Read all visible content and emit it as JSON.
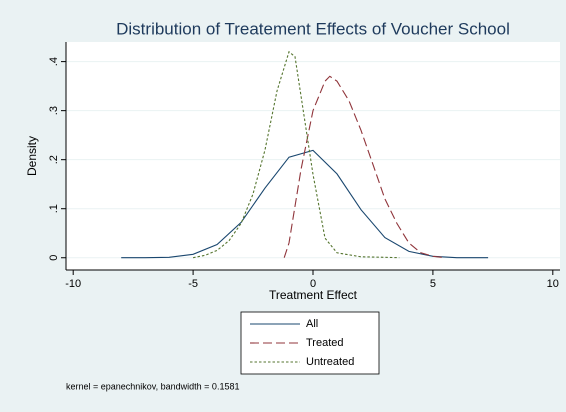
{
  "chart_data": {
    "type": "line",
    "title": "Distribution of Treatement Effects of Voucher School",
    "x_label": "Treatment Effect",
    "y_label": "Density",
    "note": "kernel = epanechnikov, bandwidth = 0.1581",
    "xlim": [
      -10.3,
      10.3
    ],
    "ylim": [
      -0.025,
      0.44
    ],
    "xticks": [
      -10,
      -5,
      0,
      5,
      10
    ],
    "yticks": [
      0,
      {
        "value": 0.1,
        "label": ".1"
      },
      {
        "value": 0.2,
        "label": ".2"
      },
      {
        "value": 0.3,
        "label": ".3"
      },
      {
        "value": 0.4,
        "label": ".4"
      }
    ],
    "grid": true,
    "legend": "bottom",
    "series": [
      {
        "name": "All",
        "color": "#1a476f",
        "dash": "solid",
        "x": [
          -8,
          -7,
          -6,
          -5,
          -4,
          -3,
          -2,
          -1,
          0,
          1,
          2,
          3,
          4,
          5,
          6,
          7.3
        ],
        "values": [
          0,
          0,
          0.001,
          0.007,
          0.027,
          0.072,
          0.142,
          0.205,
          0.219,
          0.171,
          0.098,
          0.041,
          0.013,
          0.003,
          0,
          0
        ]
      },
      {
        "name": "Treated",
        "color": "#90353b",
        "dash": "long",
        "x": [
          -1.2,
          -1,
          -0.5,
          0,
          0.5,
          0.7,
          1,
          1.5,
          2,
          2.5,
          3,
          3.5,
          4,
          4.5,
          5,
          5.5
        ],
        "values": [
          0,
          0.03,
          0.18,
          0.3,
          0.36,
          0.37,
          0.36,
          0.32,
          0.26,
          0.19,
          0.12,
          0.07,
          0.03,
          0.01,
          0.003,
          0
        ]
      },
      {
        "name": "Untreated",
        "color": "#55752f",
        "dash": "short",
        "x": [
          -5,
          -4.5,
          -4,
          -3.5,
          -3,
          -2.5,
          -2,
          -1.5,
          -1,
          -0.75,
          -0.5,
          0,
          0.5,
          1,
          2,
          3,
          3.6
        ],
        "values": [
          0,
          0.005,
          0.015,
          0.035,
          0.07,
          0.13,
          0.22,
          0.34,
          0.42,
          0.41,
          0.33,
          0.17,
          0.04,
          0.01,
          0.002,
          0.001,
          0
        ]
      }
    ]
  }
}
